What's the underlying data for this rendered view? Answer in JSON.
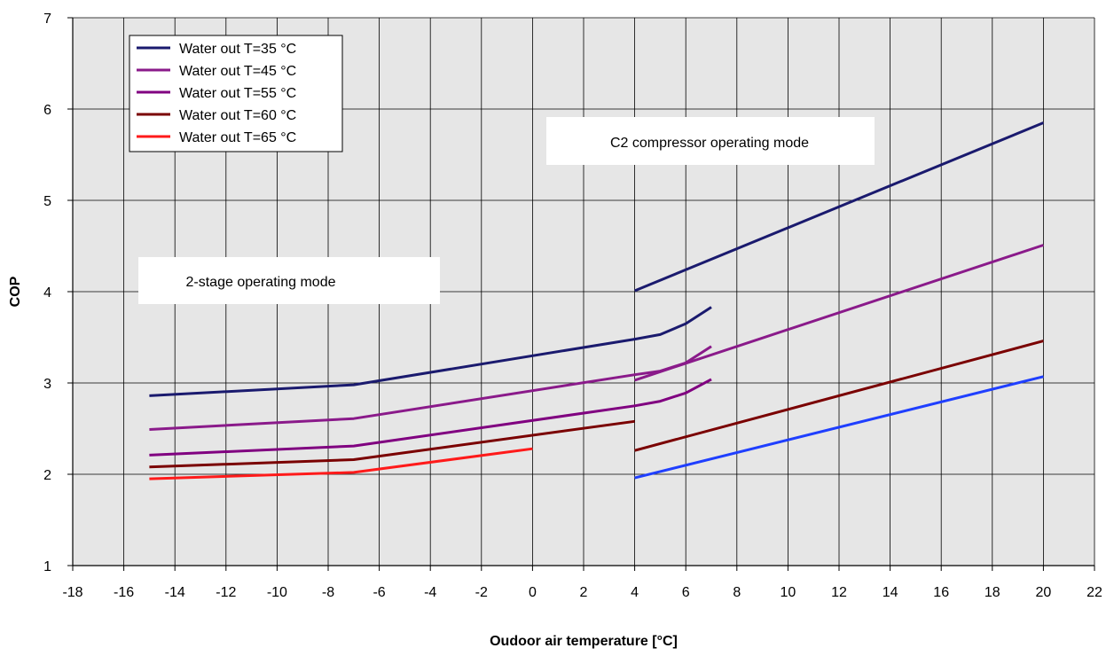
{
  "chart_data": {
    "type": "line",
    "xlabel": "Oudoor air temperature [°C]",
    "ylabel": "COP",
    "xlim": [
      -18,
      22
    ],
    "ylim": [
      1,
      7
    ],
    "xticks": [
      -18,
      -16,
      -14,
      -12,
      -10,
      -8,
      -6,
      -4,
      -2,
      0,
      2,
      4,
      6,
      8,
      10,
      12,
      14,
      16,
      18,
      20,
      22
    ],
    "yticks": [
      1,
      2,
      3,
      4,
      5,
      6,
      7
    ],
    "grid": true,
    "legend_position": "top-left",
    "background_color": "#e6e6e6",
    "series": [
      {
        "name": "Water out T=35 °C",
        "color": "#1a1a6e",
        "segments": [
          [
            [
              -15,
              2.86
            ],
            [
              -7,
              2.98
            ],
            [
              4,
              3.48
            ],
            [
              5,
              3.53
            ],
            [
              6,
              3.65
            ],
            [
              7,
              3.83
            ]
          ],
          [
            [
              4,
              4.01
            ],
            [
              20,
              5.85
            ]
          ]
        ]
      },
      {
        "name": "Water out T=45 °C",
        "color": "#8a1a8a",
        "segments": [
          [
            [
              -15,
              2.49
            ],
            [
              -7,
              2.61
            ],
            [
              4,
              3.09
            ],
            [
              5,
              3.13
            ],
            [
              6,
              3.22
            ],
            [
              7,
              3.4
            ]
          ],
          [
            [
              4,
              3.03
            ],
            [
              20,
              4.51
            ]
          ]
        ]
      },
      {
        "name": "Water out T=55 °C",
        "color": "#800080",
        "segments": [
          [
            [
              -15,
              2.21
            ],
            [
              -7,
              2.31
            ],
            [
              4,
              2.75
            ],
            [
              5,
              2.8
            ],
            [
              6,
              2.89
            ],
            [
              7,
              3.04
            ]
          ]
        ]
      },
      {
        "name": "Water out T=60 °C",
        "color": "#7a0000",
        "segments": [
          [
            [
              -15,
              2.08
            ],
            [
              -7,
              2.16
            ],
            [
              4,
              2.58
            ]
          ],
          [
            [
              4,
              2.26
            ],
            [
              20,
              3.46
            ]
          ]
        ]
      },
      {
        "name": "Water out T=65 °C",
        "color": "#ff1a1a",
        "segments": [
          [
            [
              -15,
              1.95
            ],
            [
              -7,
              2.02
            ],
            [
              0,
              2.28
            ]
          ]
        ]
      },
      {
        "color": "#1f3fff",
        "segments": [
          [
            [
              4,
              1.96
            ],
            [
              20,
              3.07
            ]
          ]
        ]
      }
    ],
    "annotations": [
      {
        "text": "C2 compressor operating mode"
      },
      {
        "text": "2-stage operating mode"
      }
    ]
  }
}
